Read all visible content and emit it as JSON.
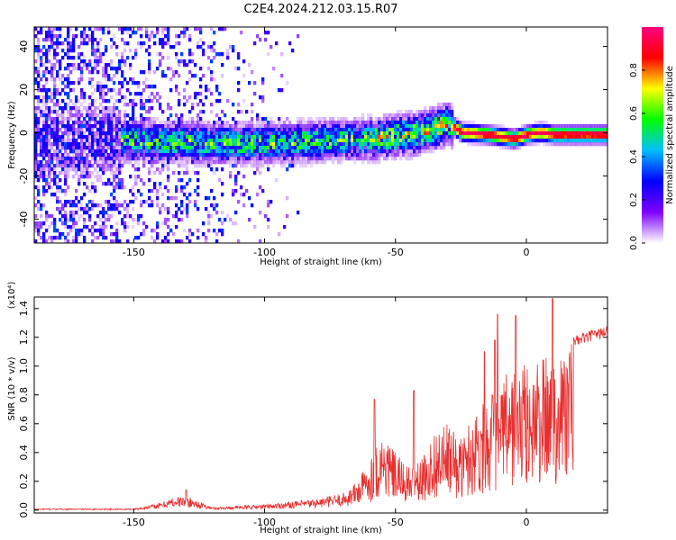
{
  "title": "C2E4.2024.212.03.15.R07",
  "chart_data": [
    {
      "type": "heatmap",
      "xlabel": "Height of straight line (km)",
      "ylabel": "Frequency (Hz)",
      "xlim": [
        -188,
        31
      ],
      "ylim": [
        -51,
        49
      ],
      "x_ticks": [
        -150,
        -100,
        -50,
        0
      ],
      "y_ticks": [
        -40,
        -20,
        0,
        20,
        40
      ],
      "colorbar": {
        "label": "Normalized spectral amplitude",
        "range": [
          0.0,
          1.0
        ],
        "ticks": [
          0.0,
          0.2,
          0.4,
          0.6,
          0.8
        ],
        "colors": [
          "#ffffff",
          "#7f00ff",
          "#0000ff",
          "#00bfff",
          "#00ff00",
          "#ffff00",
          "#ff0000",
          "#ff0080"
        ]
      },
      "ridge": {
        "x": [
          -188,
          -150,
          -120,
          -100,
          -80,
          -60,
          -40,
          -30,
          -25,
          -15,
          -10,
          -5,
          0,
          5,
          10,
          20,
          31
        ],
        "y": [
          -3,
          -3,
          -4,
          -4,
          -3,
          -2,
          1,
          5,
          1,
          0,
          -1,
          -2,
          0,
          1,
          0,
          0,
          0
        ]
      }
    },
    {
      "type": "line",
      "xlabel": "Height of straight line (km)",
      "ylabel": "SNR (10 * v/v)",
      "y_multiplier": "(x10⁴)",
      "xlim": [
        -188,
        31
      ],
      "ylim": [
        -0.02,
        1.48
      ],
      "x_ticks": [
        -150,
        -100,
        -50,
        0
      ],
      "y_ticks": [
        0.0,
        0.2,
        0.4,
        0.6,
        0.8,
        1.0,
        1.2,
        1.4
      ],
      "color": "#e83030",
      "envelope": {
        "x": [
          -188,
          -150,
          -145,
          -140,
          -135,
          -130,
          -120,
          -110,
          -100,
          -90,
          -80,
          -70,
          -65,
          -60,
          -55,
          -50,
          -45,
          -40,
          -35,
          -30,
          -25,
          -20,
          -15,
          -10,
          -5,
          0,
          5,
          10,
          15,
          20,
          25,
          31
        ],
        "y": [
          0.01,
          0.01,
          0.03,
          0.05,
          0.09,
          0.1,
          0.02,
          0.03,
          0.04,
          0.06,
          0.08,
          0.12,
          0.2,
          0.35,
          0.55,
          0.4,
          0.3,
          0.35,
          0.55,
          0.6,
          0.5,
          0.7,
          0.8,
          0.9,
          1.0,
          1.02,
          1.05,
          1.1,
          1.18,
          1.22,
          1.25,
          1.28
        ]
      },
      "spikes": [
        {
          "x": -130,
          "y": 0.14
        },
        {
          "x": -58,
          "y": 0.77
        },
        {
          "x": -43,
          "y": 0.83
        },
        {
          "x": -16,
          "y": 1.1
        },
        {
          "x": -12,
          "y": 1.18
        },
        {
          "x": -11,
          "y": 1.36
        },
        {
          "x": -4,
          "y": 1.35
        },
        {
          "x": 10,
          "y": 1.47
        }
      ]
    }
  ]
}
